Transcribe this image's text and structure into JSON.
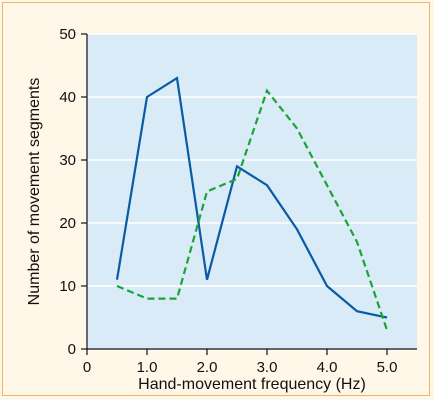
{
  "chart_data": {
    "type": "line",
    "xlabel": "Hand-movement frequency (Hz)",
    "ylabel": "Number of movement segments",
    "xlim": [
      0,
      5.5
    ],
    "ylim": [
      0,
      50
    ],
    "x_ticks": [
      0,
      1,
      2,
      3,
      4,
      5
    ],
    "x_tick_labels": [
      "0",
      "1.0",
      "2.0",
      "3.0",
      "4.0",
      "5.0"
    ],
    "y_ticks": [
      0,
      10,
      20,
      30,
      40,
      50
    ],
    "y_tick_labels": [
      "0",
      "10",
      "20",
      "30",
      "40",
      "50"
    ],
    "grid": true,
    "series": [
      {
        "style": "solid",
        "color": "#0b5aa5",
        "points": [
          {
            "x": 0.5,
            "y": 11
          },
          {
            "x": 1.0,
            "y": 40
          },
          {
            "x": 1.5,
            "y": 43
          },
          {
            "x": 2.0,
            "y": 11
          },
          {
            "x": 2.5,
            "y": 29
          },
          {
            "x": 3.0,
            "y": 26
          },
          {
            "x": 3.5,
            "y": 19
          },
          {
            "x": 4.0,
            "y": 10
          },
          {
            "x": 4.5,
            "y": 6
          },
          {
            "x": 5.0,
            "y": 5
          }
        ]
      },
      {
        "style": "dashed",
        "color": "#1aa533",
        "points": [
          {
            "x": 0.5,
            "y": 10
          },
          {
            "x": 1.0,
            "y": 8
          },
          {
            "x": 1.5,
            "y": 8
          },
          {
            "x": 2.0,
            "y": 25
          },
          {
            "x": 2.5,
            "y": 27
          },
          {
            "x": 3.0,
            "y": 41
          },
          {
            "x": 3.5,
            "y": 35
          },
          {
            "x": 4.0,
            "y": 26
          },
          {
            "x": 4.5,
            "y": 17
          },
          {
            "x": 5.0,
            "y": 3
          }
        ]
      }
    ]
  },
  "colors": {
    "plot_background": "#d8ebf7",
    "frame_border": "#f2b36d",
    "page_background": "#fff7e8",
    "gridline": "#ffffff",
    "axis": "#111111"
  }
}
